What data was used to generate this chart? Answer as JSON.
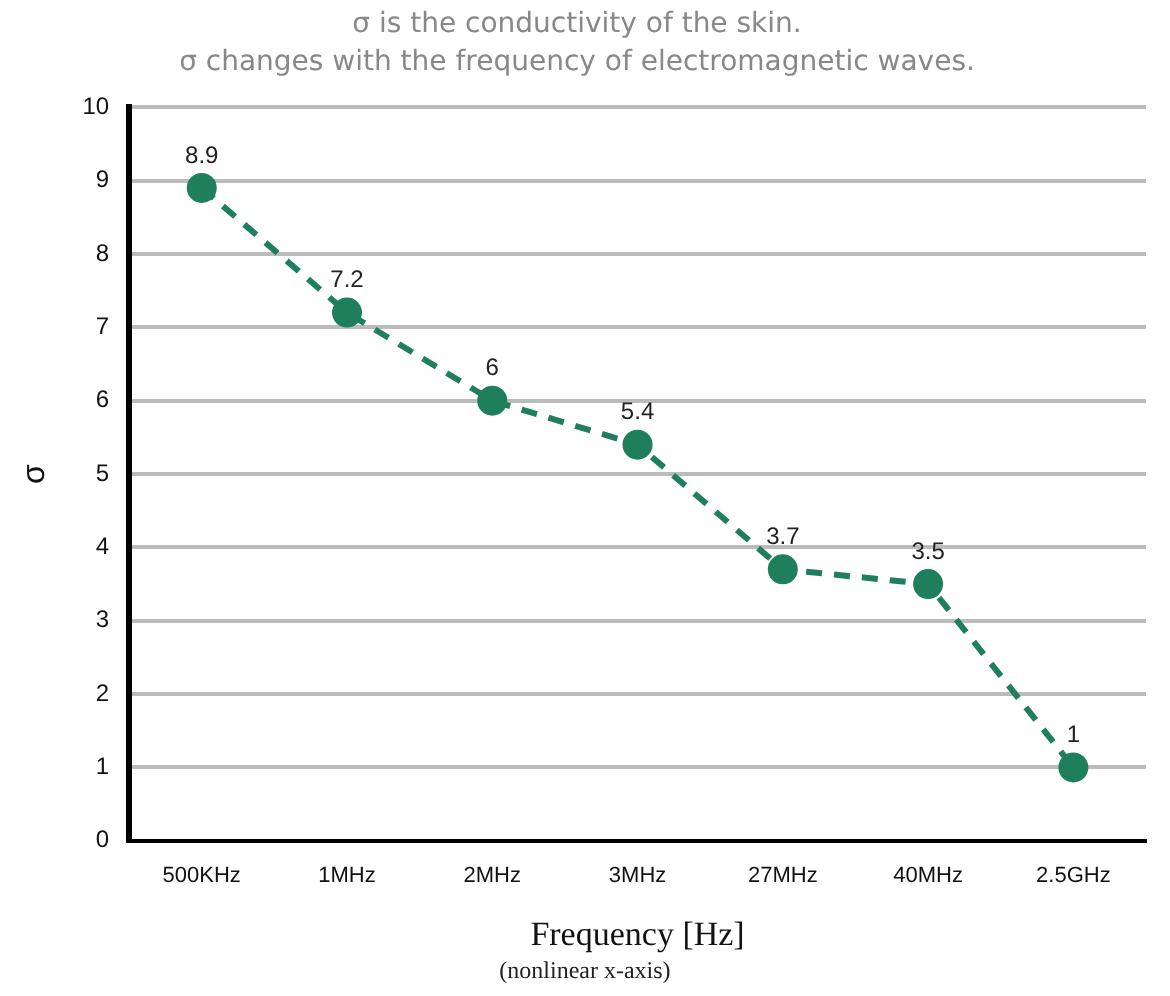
{
  "chart_data": {
    "type": "line",
    "title": "σ is the conductivity of the skin.",
    "subtitle": "σ changes with the frequency of electromagnetic waves.",
    "xlabel": "Frequency [Hz]",
    "ylabel": "σ",
    "annotations": [
      "(nonlinear x-axis)"
    ],
    "categories": [
      "500KHz",
      "1MHz",
      "2MHz",
      "3MHz",
      "27MHz",
      "40MHz",
      "2.5GHz"
    ],
    "series": [
      {
        "color": "#1f7f5c",
        "values": [
          8.9,
          7.2,
          6,
          5.4,
          3.7,
          3.5,
          1
        ]
      }
    ],
    "ylim": [
      0,
      10
    ],
    "yticks": [
      0,
      1,
      2,
      3,
      4,
      5,
      6,
      7,
      8,
      9,
      10
    ],
    "grid": "y",
    "legend": false,
    "marker": "circle",
    "line_style": "dashed",
    "data_labels": true
  }
}
